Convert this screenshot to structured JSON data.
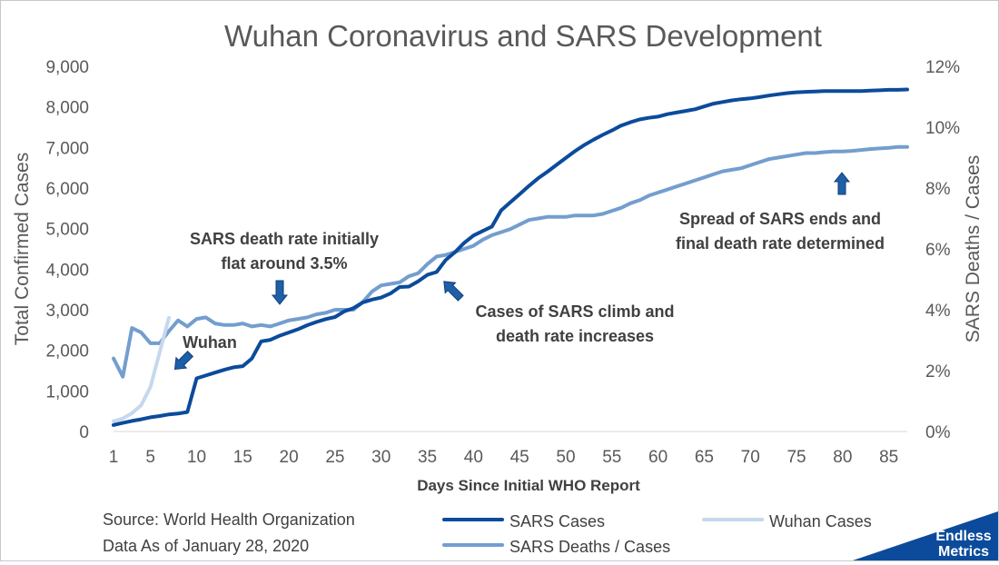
{
  "chart_data": {
    "type": "line",
    "title": "Wuhan Coronavirus and SARS Development",
    "xlabel": "Days Since Initial WHO Report",
    "ylabel": "Total Confirmed Cases",
    "y2label": "SARS Deaths / Cases",
    "xlim": [
      1,
      87
    ],
    "ylim": [
      0,
      9000
    ],
    "y2lim": [
      0,
      12
    ],
    "x_ticks": [
      "1",
      "5",
      "10",
      "15",
      "20",
      "25",
      "30",
      "35",
      "40",
      "45",
      "50",
      "55",
      "60",
      "65",
      "70",
      "75",
      "80",
      "85"
    ],
    "y_ticks": [
      "0",
      "1,000",
      "2,000",
      "3,000",
      "4,000",
      "5,000",
      "6,000",
      "7,000",
      "8,000",
      "9,000"
    ],
    "y2_ticks": [
      "0%",
      "2%",
      "4%",
      "6%",
      "8%",
      "10%",
      "12%"
    ],
    "grid": false,
    "legend_position": "bottom",
    "series": [
      {
        "name": "SARS Cases",
        "axis": "left",
        "color": "#0c4b9b",
        "points": [
          [
            1,
            160
          ],
          [
            2,
            210
          ],
          [
            3,
            260
          ],
          [
            4,
            300
          ],
          [
            5,
            350
          ],
          [
            6,
            380
          ],
          [
            7,
            420
          ],
          [
            8,
            440
          ],
          [
            9,
            480
          ],
          [
            10,
            1310
          ],
          [
            11,
            1380
          ],
          [
            12,
            1450
          ],
          [
            13,
            1520
          ],
          [
            14,
            1580
          ],
          [
            15,
            1610
          ],
          [
            16,
            1800
          ],
          [
            17,
            2220
          ],
          [
            18,
            2260
          ],
          [
            19,
            2360
          ],
          [
            20,
            2440
          ],
          [
            21,
            2520
          ],
          [
            22,
            2620
          ],
          [
            23,
            2700
          ],
          [
            24,
            2770
          ],
          [
            25,
            2820
          ],
          [
            26,
            2960
          ],
          [
            27,
            3040
          ],
          [
            28,
            3180
          ],
          [
            29,
            3250
          ],
          [
            30,
            3300
          ],
          [
            31,
            3400
          ],
          [
            32,
            3560
          ],
          [
            33,
            3570
          ],
          [
            34,
            3700
          ],
          [
            35,
            3860
          ],
          [
            36,
            3930
          ],
          [
            37,
            4230
          ],
          [
            38,
            4420
          ],
          [
            39,
            4650
          ],
          [
            40,
            4830
          ],
          [
            41,
            4940
          ],
          [
            42,
            5050
          ],
          [
            43,
            5450
          ],
          [
            44,
            5650
          ],
          [
            45,
            5850
          ],
          [
            46,
            6050
          ],
          [
            47,
            6240
          ],
          [
            48,
            6400
          ],
          [
            49,
            6570
          ],
          [
            50,
            6740
          ],
          [
            51,
            6910
          ],
          [
            52,
            7060
          ],
          [
            53,
            7190
          ],
          [
            54,
            7310
          ],
          [
            55,
            7420
          ],
          [
            56,
            7540
          ],
          [
            57,
            7620
          ],
          [
            58,
            7690
          ],
          [
            59,
            7730
          ],
          [
            60,
            7760
          ],
          [
            61,
            7820
          ],
          [
            62,
            7860
          ],
          [
            63,
            7900
          ],
          [
            64,
            7940
          ],
          [
            65,
            8010
          ],
          [
            66,
            8080
          ],
          [
            67,
            8120
          ],
          [
            68,
            8160
          ],
          [
            69,
            8190
          ],
          [
            70,
            8210
          ],
          [
            71,
            8240
          ],
          [
            72,
            8280
          ],
          [
            73,
            8310
          ],
          [
            74,
            8340
          ],
          [
            75,
            8360
          ],
          [
            76,
            8370
          ],
          [
            77,
            8380
          ],
          [
            78,
            8390
          ],
          [
            79,
            8390
          ],
          [
            80,
            8390
          ],
          [
            81,
            8390
          ],
          [
            82,
            8390
          ],
          [
            83,
            8400
          ],
          [
            84,
            8410
          ],
          [
            85,
            8420
          ],
          [
            86,
            8420
          ],
          [
            87,
            8430
          ]
        ]
      },
      {
        "name": "Wuhan Cases",
        "axis": "left",
        "color": "#c5d8ee",
        "points": [
          [
            1,
            250
          ],
          [
            2,
            320
          ],
          [
            3,
            450
          ],
          [
            4,
            650
          ],
          [
            5,
            1100
          ],
          [
            6,
            1950
          ],
          [
            7,
            2800
          ]
        ]
      },
      {
        "name": "SARS Deaths / Cases",
        "axis": "right",
        "color": "#739ece",
        "points": [
          [
            1,
            2.4
          ],
          [
            2,
            1.8
          ],
          [
            3,
            3.4
          ],
          [
            4,
            3.25
          ],
          [
            5,
            2.9
          ],
          [
            6,
            2.9
          ],
          [
            7,
            3.3
          ],
          [
            8,
            3.65
          ],
          [
            9,
            3.45
          ],
          [
            10,
            3.7
          ],
          [
            11,
            3.75
          ],
          [
            12,
            3.55
          ],
          [
            13,
            3.5
          ],
          [
            14,
            3.5
          ],
          [
            15,
            3.55
          ],
          [
            16,
            3.45
          ],
          [
            17,
            3.5
          ],
          [
            18,
            3.45
          ],
          [
            19,
            3.55
          ],
          [
            20,
            3.65
          ],
          [
            21,
            3.7
          ],
          [
            22,
            3.75
          ],
          [
            23,
            3.85
          ],
          [
            24,
            3.9
          ],
          [
            25,
            4.0
          ],
          [
            26,
            4.0
          ],
          [
            27,
            4.0
          ],
          [
            28,
            4.25
          ],
          [
            29,
            4.6
          ],
          [
            30,
            4.8
          ],
          [
            31,
            4.85
          ],
          [
            32,
            4.9
          ],
          [
            33,
            5.1
          ],
          [
            34,
            5.2
          ],
          [
            35,
            5.5
          ],
          [
            36,
            5.75
          ],
          [
            37,
            5.8
          ],
          [
            38,
            5.9
          ],
          [
            39,
            6.0
          ],
          [
            40,
            6.1
          ],
          [
            41,
            6.3
          ],
          [
            42,
            6.45
          ],
          [
            43,
            6.55
          ],
          [
            44,
            6.65
          ],
          [
            45,
            6.8
          ],
          [
            46,
            6.95
          ],
          [
            47,
            7.0
          ],
          [
            48,
            7.05
          ],
          [
            49,
            7.05
          ],
          [
            50,
            7.05
          ],
          [
            51,
            7.1
          ],
          [
            52,
            7.1
          ],
          [
            53,
            7.1
          ],
          [
            54,
            7.15
          ],
          [
            55,
            7.25
          ],
          [
            56,
            7.35
          ],
          [
            57,
            7.5
          ],
          [
            58,
            7.6
          ],
          [
            59,
            7.75
          ],
          [
            60,
            7.85
          ],
          [
            61,
            7.95
          ],
          [
            62,
            8.05
          ],
          [
            63,
            8.15
          ],
          [
            64,
            8.25
          ],
          [
            65,
            8.35
          ],
          [
            66,
            8.45
          ],
          [
            67,
            8.55
          ],
          [
            68,
            8.6
          ],
          [
            69,
            8.65
          ],
          [
            70,
            8.75
          ],
          [
            71,
            8.85
          ],
          [
            72,
            8.95
          ],
          [
            73,
            9.0
          ],
          [
            74,
            9.05
          ],
          [
            75,
            9.1
          ],
          [
            76,
            9.15
          ],
          [
            77,
            9.15
          ],
          [
            78,
            9.18
          ],
          [
            79,
            9.2
          ],
          [
            80,
            9.2
          ],
          [
            81,
            9.22
          ],
          [
            82,
            9.25
          ],
          [
            83,
            9.28
          ],
          [
            84,
            9.3
          ],
          [
            85,
            9.32
          ],
          [
            86,
            9.35
          ],
          [
            87,
            9.35
          ]
        ]
      }
    ],
    "annotations": [
      {
        "lines": [
          "SARS death rate initially",
          "flat around 3.5%"
        ],
        "arrow": "down"
      },
      {
        "lines": [
          "Wuhan"
        ],
        "arrow": "down-left"
      },
      {
        "lines": [
          "Cases of SARS climb and",
          "death rate increases"
        ],
        "arrow": "up-left"
      },
      {
        "lines": [
          "Spread of SARS ends and",
          "final death rate determined"
        ],
        "arrow": "up"
      }
    ]
  },
  "footer": {
    "source_line": "Source: World Health Organization",
    "date_line": "Data As of January 28, 2020"
  },
  "logo": {
    "line1": "Endless",
    "line2": "Metrics"
  }
}
